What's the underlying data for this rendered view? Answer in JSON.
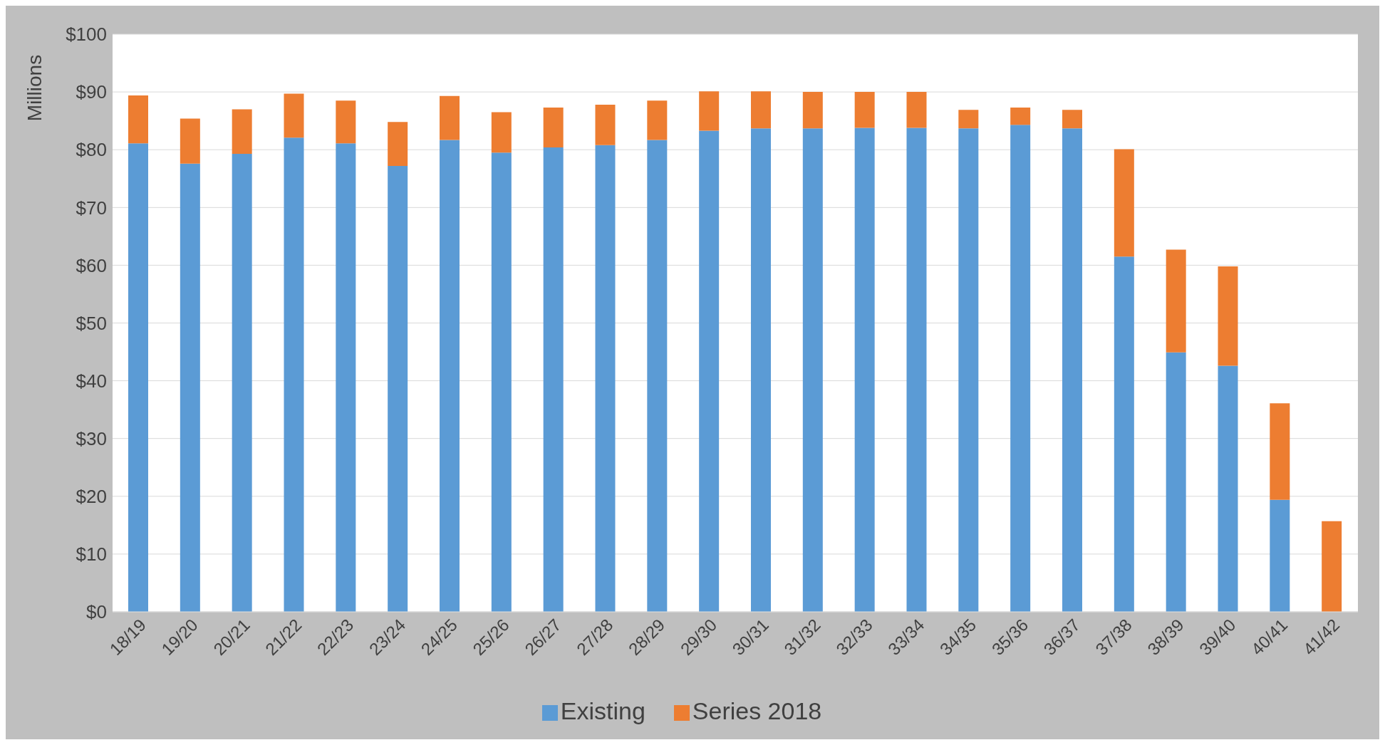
{
  "chart_data": {
    "type": "bar",
    "stacked": true,
    "ylabel": "Millions",
    "categories": [
      "18/19",
      "19/20",
      "20/21",
      "21/22",
      "22/23",
      "23/24",
      "24/25",
      "25/26",
      "26/27",
      "27/28",
      "28/29",
      "29/30",
      "30/31",
      "31/32",
      "32/33",
      "33/34",
      "34/35",
      "35/36",
      "36/37",
      "37/38",
      "38/39",
      "39/40",
      "40/41",
      "41/42"
    ],
    "series": [
      {
        "name": "Existing",
        "color": "#5b9bd5",
        "values": [
          81.1,
          77.6,
          79.3,
          82.1,
          81.1,
          77.2,
          81.7,
          79.5,
          80.4,
          80.8,
          81.7,
          83.3,
          83.7,
          83.7,
          83.8,
          83.8,
          83.7,
          84.3,
          83.7,
          61.5,
          44.9,
          42.6,
          19.4,
          0
        ]
      },
      {
        "name": "Series 2018",
        "color": "#ed7d31",
        "values": [
          8.3,
          7.8,
          7.7,
          7.6,
          7.4,
          7.6,
          7.6,
          7.0,
          6.9,
          7.0,
          6.8,
          6.8,
          6.4,
          6.3,
          6.2,
          6.2,
          3.2,
          3.0,
          3.2,
          18.6,
          17.8,
          17.2,
          16.7,
          15.7
        ]
      }
    ],
    "ylim": [
      0,
      100
    ],
    "yticks": [
      {
        "value": 0,
        "label": "$0"
      },
      {
        "value": 10,
        "label": "$10"
      },
      {
        "value": 20,
        "label": "$20"
      },
      {
        "value": 30,
        "label": "$30"
      },
      {
        "value": 40,
        "label": "$40"
      },
      {
        "value": 50,
        "label": "$50"
      },
      {
        "value": 60,
        "label": "$60"
      },
      {
        "value": 70,
        "label": "$70"
      },
      {
        "value": 80,
        "label": "$80"
      },
      {
        "value": 90,
        "label": "$90"
      },
      {
        "value": 100,
        "label": "$100"
      }
    ],
    "grid": "y",
    "legend": "bottom"
  }
}
